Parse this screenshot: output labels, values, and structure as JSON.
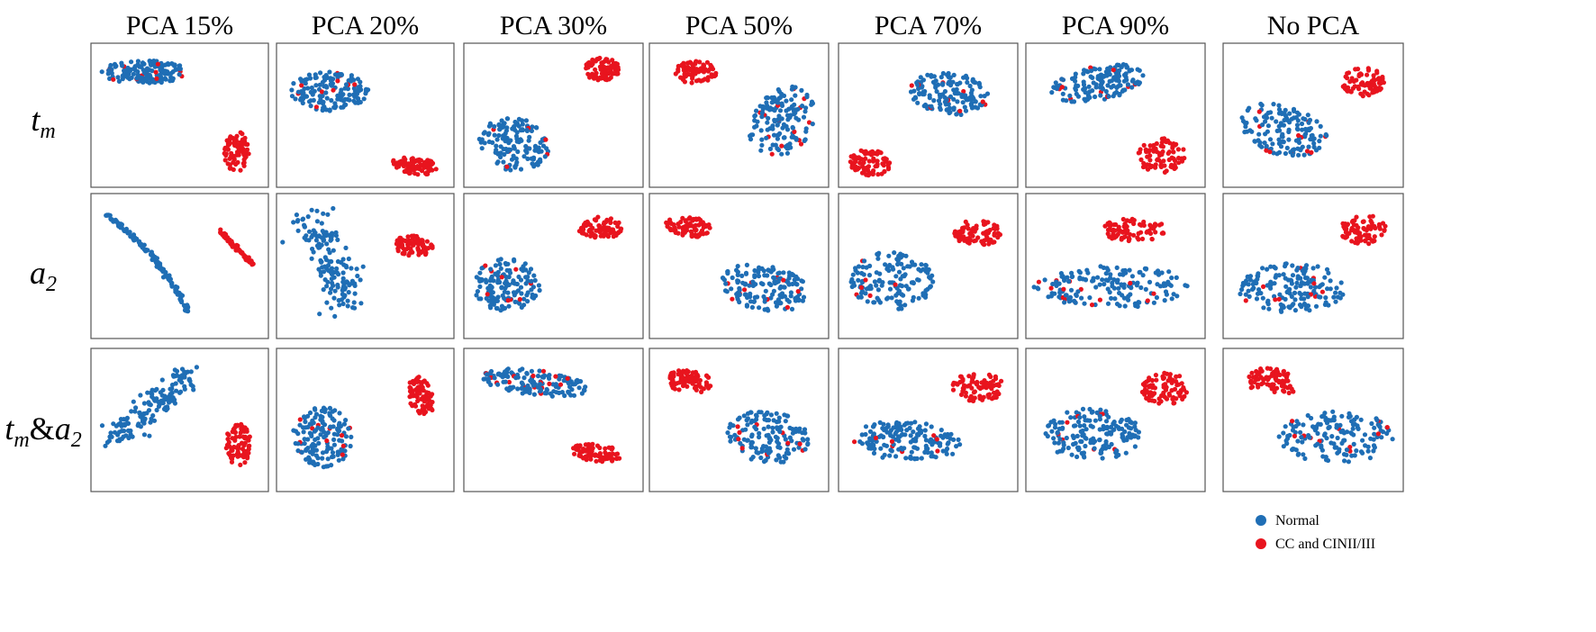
{
  "chart_data": {
    "type": "scatter",
    "columns": [
      "PCA 15%",
      "PCA 20%",
      "PCA 30%",
      "PCA 50%",
      "PCA 70%",
      "PCA 90%",
      "No PCA"
    ],
    "rows": [
      {
        "symbol": "t",
        "sub": "m",
        "second_symbol": "",
        "second_sub": ""
      },
      {
        "symbol": "a",
        "sub": "2",
        "second_symbol": "",
        "second_sub": ""
      },
      {
        "symbol": "t",
        "sub": "m",
        "second_symbol": "a",
        "second_sub": "2"
      }
    ],
    "legend": {
      "placement": "bottom-right",
      "entries": [
        {
          "label": "Normal",
          "color": "#1f6eb5"
        },
        {
          "label": "CC and CINII/III",
          "color": "#e8141e"
        }
      ]
    },
    "series_colors": {
      "Normal": "#1f6eb5",
      "CC and CINII/III": "#e8141e"
    },
    "xlim": [
      0,
      1
    ],
    "ylim": [
      0,
      1
    ],
    "grid": false,
    "panels": [
      {
        "row": 0,
        "col": 0,
        "clusters": [
          {
            "series": "Normal",
            "shape": "ellipse",
            "cx": 0.3,
            "cy": 0.8,
            "rx": 0.26,
            "ry": 0.08,
            "n": 150,
            "rot": 0
          },
          {
            "series": "CC and CINII/III",
            "shape": "ellipse",
            "cx": 0.82,
            "cy": 0.25,
            "rx": 0.07,
            "ry": 0.14,
            "n": 80,
            "rot": 0
          }
        ]
      },
      {
        "row": 0,
        "col": 1,
        "clusters": [
          {
            "series": "Normal",
            "shape": "ellipse",
            "cx": 0.3,
            "cy": 0.67,
            "rx": 0.22,
            "ry": 0.14,
            "n": 150,
            "rot": 0
          },
          {
            "series": "CC and CINII/III",
            "shape": "ellipse",
            "cx": 0.78,
            "cy": 0.15,
            "rx": 0.13,
            "ry": 0.06,
            "n": 80,
            "rot": -10
          }
        ]
      },
      {
        "row": 0,
        "col": 2,
        "clusters": [
          {
            "series": "Normal",
            "shape": "ellipse",
            "cx": 0.28,
            "cy": 0.3,
            "rx": 0.2,
            "ry": 0.18,
            "n": 150,
            "rot": -30
          },
          {
            "series": "CC and CINII/III",
            "shape": "ellipse",
            "cx": 0.77,
            "cy": 0.82,
            "rx": 0.1,
            "ry": 0.08,
            "n": 80,
            "rot": 0
          }
        ]
      },
      {
        "row": 0,
        "col": 3,
        "clusters": [
          {
            "series": "Normal",
            "shape": "ellipse",
            "cx": 0.74,
            "cy": 0.45,
            "rx": 0.17,
            "ry": 0.26,
            "n": 150,
            "rot": -20
          },
          {
            "series": "CC and CINII/III",
            "shape": "ellipse",
            "cx": 0.26,
            "cy": 0.8,
            "rx": 0.12,
            "ry": 0.08,
            "n": 80,
            "rot": 0
          }
        ]
      },
      {
        "row": 0,
        "col": 4,
        "clusters": [
          {
            "series": "Normal",
            "shape": "ellipse",
            "cx": 0.62,
            "cy": 0.65,
            "rx": 0.22,
            "ry": 0.15,
            "n": 150,
            "rot": -10
          },
          {
            "series": "CC and CINII/III",
            "shape": "ellipse",
            "cx": 0.18,
            "cy": 0.17,
            "rx": 0.12,
            "ry": 0.09,
            "n": 80,
            "rot": -10
          }
        ]
      },
      {
        "row": 0,
        "col": 5,
        "clusters": [
          {
            "series": "Normal",
            "shape": "ellipse",
            "cx": 0.4,
            "cy": 0.72,
            "rx": 0.27,
            "ry": 0.12,
            "n": 150,
            "rot": 15
          },
          {
            "series": "CC and CINII/III",
            "shape": "ellipse",
            "cx": 0.76,
            "cy": 0.22,
            "rx": 0.14,
            "ry": 0.12,
            "n": 80,
            "rot": 0
          }
        ]
      },
      {
        "row": 0,
        "col": 6,
        "clusters": [
          {
            "series": "Normal",
            "shape": "ellipse",
            "cx": 0.33,
            "cy": 0.4,
            "rx": 0.26,
            "ry": 0.17,
            "n": 150,
            "rot": -20
          },
          {
            "series": "CC and CINII/III",
            "shape": "ellipse",
            "cx": 0.78,
            "cy": 0.73,
            "rx": 0.12,
            "ry": 0.1,
            "n": 80,
            "rot": 0
          }
        ]
      },
      {
        "row": 1,
        "col": 0,
        "clusters": [
          {
            "series": "Normal",
            "shape": "arc",
            "x0": 0.08,
            "y0": 0.86,
            "x1": 0.55,
            "y1": 0.18,
            "bend": 0.1,
            "width": 0.012,
            "n": 150
          },
          {
            "series": "CC and CINII/III",
            "shape": "arc",
            "x0": 0.72,
            "y0": 0.75,
            "x1": 0.92,
            "y1": 0.5,
            "bend": 0.0,
            "width": 0.01,
            "n": 80
          }
        ]
      },
      {
        "row": 1,
        "col": 1,
        "clusters": [
          {
            "series": "Normal",
            "shape": "arc",
            "x0": 0.14,
            "y0": 0.86,
            "x1": 0.38,
            "y1": 0.22,
            "bend": 0.1,
            "width": 0.09,
            "n": 150
          },
          {
            "series": "CC and CINII/III",
            "shape": "ellipse",
            "cx": 0.77,
            "cy": 0.64,
            "rx": 0.11,
            "ry": 0.07,
            "n": 80,
            "rot": -10
          }
        ]
      },
      {
        "row": 1,
        "col": 2,
        "clusters": [
          {
            "series": "Normal",
            "shape": "ellipse",
            "cx": 0.24,
            "cy": 0.37,
            "rx": 0.19,
            "ry": 0.18,
            "n": 150,
            "rot": 0
          },
          {
            "series": "CC and CINII/III",
            "shape": "ellipse",
            "cx": 0.76,
            "cy": 0.76,
            "rx": 0.12,
            "ry": 0.08,
            "n": 80,
            "rot": 0
          }
        ]
      },
      {
        "row": 1,
        "col": 3,
        "clusters": [
          {
            "series": "Normal",
            "shape": "ellipse",
            "cx": 0.64,
            "cy": 0.35,
            "rx": 0.25,
            "ry": 0.16,
            "n": 150,
            "rot": -15
          },
          {
            "series": "CC and CINII/III",
            "shape": "ellipse",
            "cx": 0.22,
            "cy": 0.77,
            "rx": 0.13,
            "ry": 0.07,
            "n": 80,
            "rot": -10
          }
        ]
      },
      {
        "row": 1,
        "col": 4,
        "clusters": [
          {
            "series": "Normal",
            "shape": "ellipse",
            "cx": 0.3,
            "cy": 0.4,
            "rx": 0.23,
            "ry": 0.2,
            "n": 150,
            "rot": 0
          },
          {
            "series": "CC and CINII/III",
            "shape": "ellipse",
            "cx": 0.78,
            "cy": 0.73,
            "rx": 0.14,
            "ry": 0.09,
            "n": 80,
            "rot": 0
          }
        ]
      },
      {
        "row": 1,
        "col": 5,
        "clusters": [
          {
            "series": "Normal",
            "shape": "ellipse",
            "cx": 0.48,
            "cy": 0.36,
            "rx": 0.44,
            "ry": 0.15,
            "n": 170,
            "rot": 0
          },
          {
            "series": "CC and CINII/III",
            "shape": "ellipse",
            "cx": 0.6,
            "cy": 0.75,
            "rx": 0.18,
            "ry": 0.08,
            "n": 80,
            "rot": 0
          }
        ]
      },
      {
        "row": 1,
        "col": 6,
        "clusters": [
          {
            "series": "Normal",
            "shape": "ellipse",
            "cx": 0.38,
            "cy": 0.35,
            "rx": 0.3,
            "ry": 0.17,
            "n": 160,
            "rot": 0
          },
          {
            "series": "CC and CINII/III",
            "shape": "ellipse",
            "cx": 0.78,
            "cy": 0.75,
            "rx": 0.13,
            "ry": 0.11,
            "n": 80,
            "rot": 0
          }
        ]
      },
      {
        "row": 2,
        "col": 0,
        "clusters": [
          {
            "series": "Normal",
            "shape": "arc",
            "x0": 0.12,
            "y0": 0.38,
            "x1": 0.55,
            "y1": 0.84,
            "bend": -0.05,
            "width": 0.07,
            "n": 150
          },
          {
            "series": "CC and CINII/III",
            "shape": "ellipse",
            "cx": 0.83,
            "cy": 0.33,
            "rx": 0.07,
            "ry": 0.15,
            "n": 80,
            "rot": 0
          }
        ]
      },
      {
        "row": 2,
        "col": 1,
        "clusters": [
          {
            "series": "Normal",
            "shape": "ellipse",
            "cx": 0.26,
            "cy": 0.38,
            "rx": 0.17,
            "ry": 0.21,
            "n": 150,
            "rot": 0
          },
          {
            "series": "CC and CINII/III",
            "shape": "ellipse",
            "cx": 0.81,
            "cy": 0.67,
            "rx": 0.07,
            "ry": 0.14,
            "n": 80,
            "rot": 15
          }
        ]
      },
      {
        "row": 2,
        "col": 2,
        "clusters": [
          {
            "series": "Normal",
            "shape": "ellipse",
            "cx": 0.4,
            "cy": 0.76,
            "rx": 0.3,
            "ry": 0.09,
            "n": 150,
            "rot": -8
          },
          {
            "series": "CC and CINII/III",
            "shape": "ellipse",
            "cx": 0.74,
            "cy": 0.27,
            "rx": 0.14,
            "ry": 0.06,
            "n": 80,
            "rot": -8
          }
        ]
      },
      {
        "row": 2,
        "col": 3,
        "clusters": [
          {
            "series": "Normal",
            "shape": "ellipse",
            "cx": 0.66,
            "cy": 0.38,
            "rx": 0.23,
            "ry": 0.18,
            "n": 150,
            "rot": -15
          },
          {
            "series": "CC and CINII/III",
            "shape": "ellipse",
            "cx": 0.22,
            "cy": 0.77,
            "rx": 0.13,
            "ry": 0.08,
            "n": 80,
            "rot": -10
          }
        ]
      },
      {
        "row": 2,
        "col": 4,
        "clusters": [
          {
            "series": "Normal",
            "shape": "ellipse",
            "cx": 0.38,
            "cy": 0.35,
            "rx": 0.3,
            "ry": 0.14,
            "n": 160,
            "rot": -5
          },
          {
            "series": "CC and CINII/III",
            "shape": "ellipse",
            "cx": 0.78,
            "cy": 0.73,
            "rx": 0.15,
            "ry": 0.1,
            "n": 80,
            "rot": 0
          }
        ]
      },
      {
        "row": 2,
        "col": 5,
        "clusters": [
          {
            "series": "Normal",
            "shape": "ellipse",
            "cx": 0.38,
            "cy": 0.4,
            "rx": 0.27,
            "ry": 0.19,
            "n": 170,
            "rot": 0
          },
          {
            "series": "CC and CINII/III",
            "shape": "ellipse",
            "cx": 0.78,
            "cy": 0.72,
            "rx": 0.14,
            "ry": 0.11,
            "n": 80,
            "rot": 0
          }
        ]
      },
      {
        "row": 2,
        "col": 6,
        "clusters": [
          {
            "series": "Normal",
            "shape": "ellipse",
            "cx": 0.63,
            "cy": 0.38,
            "rx": 0.32,
            "ry": 0.18,
            "n": 160,
            "rot": 0
          },
          {
            "series": "CC and CINII/III",
            "shape": "ellipse",
            "cx": 0.27,
            "cy": 0.76,
            "rx": 0.14,
            "ry": 0.1,
            "n": 80,
            "rot": -15
          }
        ]
      }
    ]
  }
}
